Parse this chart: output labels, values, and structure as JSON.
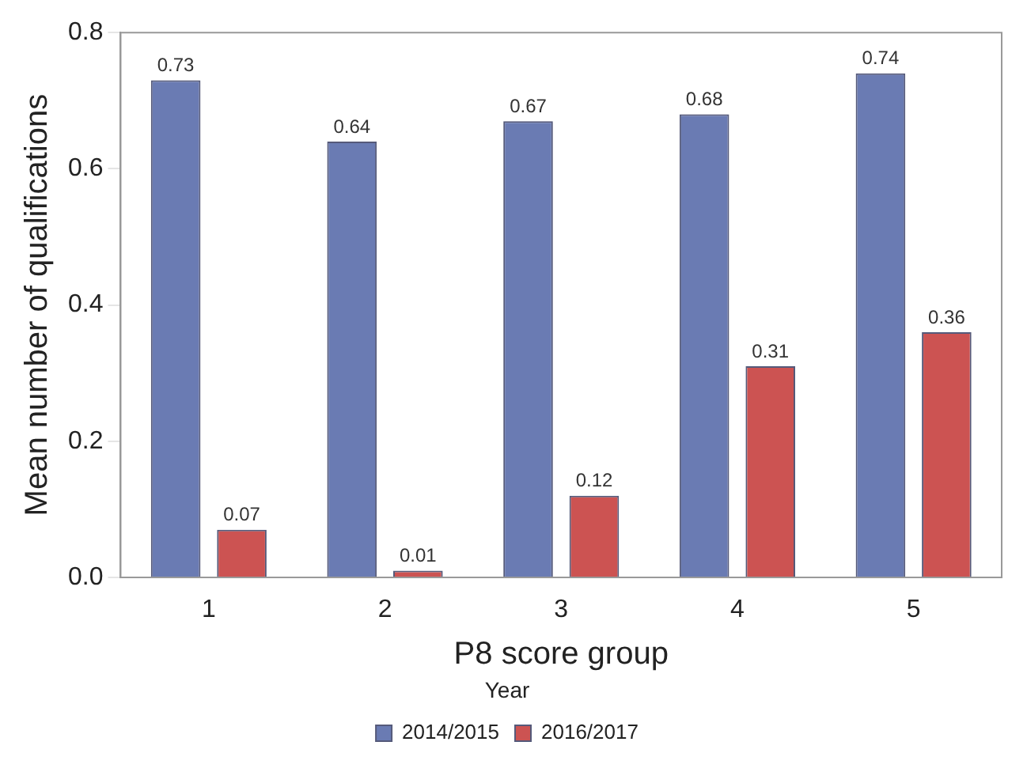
{
  "chart_data": {
    "type": "bar",
    "xlabel": "P8 score group",
    "ylabel": "Mean number of qualifications",
    "legend_title": "Year",
    "categories": [
      "1",
      "2",
      "3",
      "4",
      "5"
    ],
    "series": [
      {
        "name": "2014/2015",
        "color": "#6a7bb3",
        "values": [
          0.73,
          0.64,
          0.67,
          0.68,
          0.74
        ]
      },
      {
        "name": "2016/2017",
        "color": "#cc5352",
        "values": [
          0.07,
          0.01,
          0.12,
          0.31,
          0.36
        ]
      }
    ],
    "ylim": [
      0,
      0.8
    ],
    "yticks": [
      {
        "value": 0,
        "label": "0.0"
      },
      0.2,
      0.4,
      0.6,
      0.8
    ],
    "data_labels": true,
    "grid": false,
    "legend": "bottom"
  }
}
